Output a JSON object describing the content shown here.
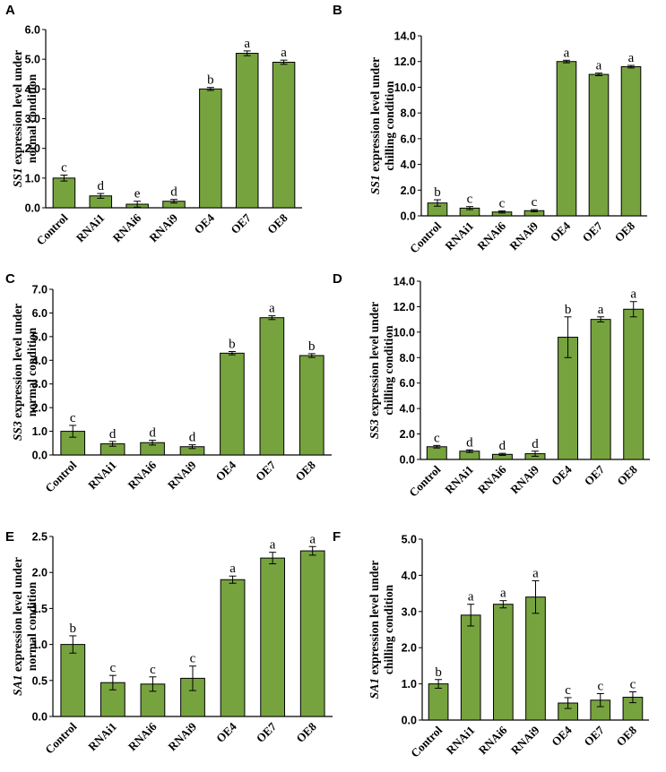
{
  "figure": {
    "categories": [
      "Control",
      "RNAi1",
      "RNAi6",
      "RNAi9",
      "OE4",
      "OE7",
      "OE8"
    ],
    "colors": {
      "bar_fill": "#77a33f",
      "bar_stroke": "#000000"
    }
  },
  "chart_data": [
    {
      "panel": "A",
      "type": "bar",
      "ylabel_gene": "SS1",
      "ylabel_line1": " expression level under",
      "ylabel_line2": "normal condition",
      "ylim": [
        0,
        6.0
      ],
      "yticks": [
        "0.0",
        "1.0",
        "2.0",
        "3.0",
        "4.0",
        "5.0",
        "6.0"
      ],
      "values": [
        1.0,
        0.4,
        0.12,
        0.22,
        4.0,
        5.2,
        4.9
      ],
      "errors": [
        0.1,
        0.08,
        0.1,
        0.06,
        0.05,
        0.08,
        0.07
      ],
      "letters": [
        "c",
        "d",
        "e",
        "d",
        "b",
        "a",
        "a"
      ]
    },
    {
      "panel": "B",
      "type": "bar",
      "ylabel_gene": "SS1",
      "ylabel_line1": " expression level under",
      "ylabel_line2": "chilling condition",
      "ylim": [
        0,
        14.0
      ],
      "yticks": [
        "0.0",
        "2.0",
        "4.0",
        "6.0",
        "8.0",
        "10.0",
        "12.0",
        "14.0"
      ],
      "values": [
        1.0,
        0.6,
        0.3,
        0.4,
        12.0,
        11.0,
        11.6
      ],
      "errors": [
        0.25,
        0.12,
        0.08,
        0.08,
        0.1,
        0.1,
        0.1
      ],
      "letters": [
        "b",
        "c",
        "c",
        "c",
        "a",
        "a",
        "a"
      ]
    },
    {
      "panel": "C",
      "type": "bar",
      "ylabel_gene": "SS3",
      "ylabel_line1": " expression level under",
      "ylabel_line2": "normal condition",
      "ylim": [
        0,
        7.0
      ],
      "yticks": [
        "0.0",
        "1.0",
        "2.0",
        "3.0",
        "4.0",
        "5.0",
        "6.0",
        "7.0"
      ],
      "values": [
        1.0,
        0.47,
        0.52,
        0.35,
        4.3,
        5.8,
        4.2
      ],
      "errors": [
        0.25,
        0.1,
        0.1,
        0.08,
        0.07,
        0.08,
        0.08
      ],
      "letters": [
        "c",
        "d",
        "d",
        "d",
        "b",
        "a",
        "b"
      ]
    },
    {
      "panel": "D",
      "type": "bar",
      "ylabel_gene": "SS3",
      "ylabel_line1": " expression level under",
      "ylabel_line2": "chilling condition",
      "ylim": [
        0,
        14.0
      ],
      "yticks": [
        "0.0",
        "2.0",
        "4.0",
        "6.0",
        "8.0",
        "10.0",
        "12.0",
        "14.0"
      ],
      "values": [
        1.0,
        0.65,
        0.4,
        0.45,
        9.6,
        11.0,
        11.8
      ],
      "errors": [
        0.1,
        0.1,
        0.08,
        0.2,
        1.6,
        0.2,
        0.6
      ],
      "letters": [
        "c",
        "d",
        "d",
        "d",
        "b",
        "a",
        "a"
      ]
    },
    {
      "panel": "E",
      "type": "bar",
      "ylabel_gene": "SA1",
      "ylabel_line1": " expression level under",
      "ylabel_line2": "normal condition",
      "ylim": [
        0,
        2.5
      ],
      "yticks": [
        "0.0",
        "0.5",
        "1.0",
        "1.5",
        "2.0",
        "2.5"
      ],
      "values": [
        1.0,
        0.47,
        0.45,
        0.53,
        1.9,
        2.2,
        2.3
      ],
      "errors": [
        0.12,
        0.1,
        0.1,
        0.17,
        0.05,
        0.08,
        0.06
      ],
      "letters": [
        "b",
        "c",
        "c",
        "c",
        "a",
        "a",
        "a"
      ]
    },
    {
      "panel": "F",
      "type": "bar",
      "ylabel_gene": "SA1",
      "ylabel_line1": " expression level under",
      "ylabel_line2": "chilling condition",
      "ylim": [
        0,
        5.0
      ],
      "yticks": [
        "0.0",
        "1.0",
        "2.0",
        "3.0",
        "4.0",
        "5.0"
      ],
      "values": [
        1.0,
        2.9,
        3.2,
        3.4,
        0.47,
        0.55,
        0.63
      ],
      "errors": [
        0.12,
        0.3,
        0.1,
        0.45,
        0.15,
        0.18,
        0.15
      ],
      "letters": [
        "b",
        "a",
        "a",
        "a",
        "c",
        "c",
        "c"
      ]
    }
  ]
}
